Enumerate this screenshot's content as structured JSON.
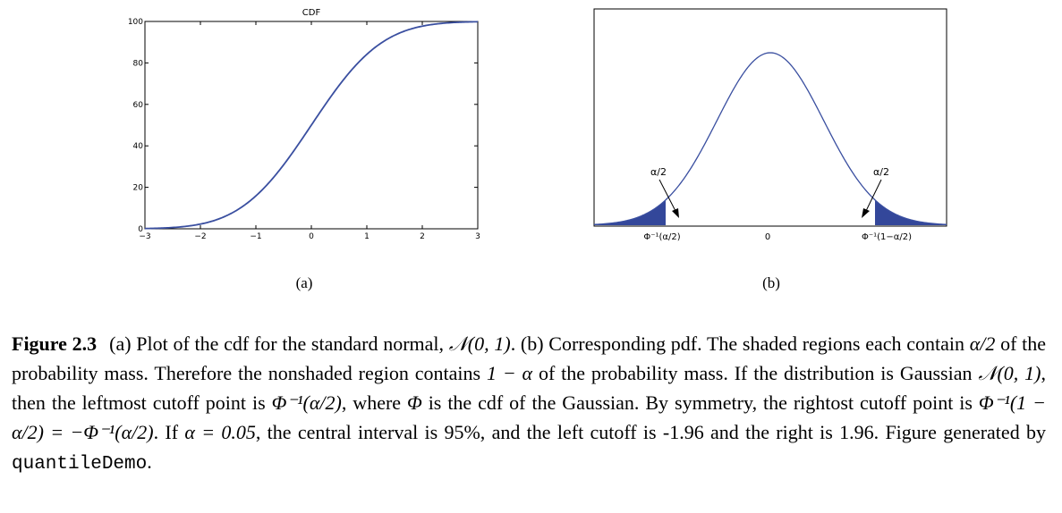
{
  "figure": {
    "panel_a": {
      "title": "CDF",
      "sublabel": "(a)"
    },
    "panel_b": {
      "sublabel": "(b)",
      "annotations": [
        "α/2",
        "α/2"
      ],
      "xtick_labels": [
        "Φ⁻¹(α/2)",
        "0",
        "Φ⁻¹(1−α/2)"
      ]
    }
  },
  "caption": {
    "label": "Figure 2.3",
    "p1": "(a) Plot of the cdf for the standard normal, ",
    "m1": "𝒩(0, 1)",
    "p2": ". (b) Corresponding pdf. The shaded regions each contain ",
    "m2": "α/2",
    "p3": " of the probability mass. Therefore the nonshaded region contains ",
    "m3": "1 − α",
    "p4": " of the probability mass. If the distribution is Gaussian ",
    "m4": "𝒩(0, 1)",
    "p5": ", then the leftmost cutoff point is ",
    "m5": "Φ⁻¹(α/2)",
    "p6": ", where ",
    "m6": "Φ",
    "p7": " is the cdf of the Gaussian. By symmetry, the rightost cutoff point is ",
    "m7": "Φ⁻¹(1 − α/2) = −Φ⁻¹(α/2)",
    "p8": ". If ",
    "m8": "α = 0.05",
    "p9": ", the central interval is 95%, and the left cutoff is -1.96 and the right is 1.96. Figure generated by ",
    "code": "quantileDemo",
    "p10": "."
  },
  "chart_data": [
    {
      "type": "line",
      "title": "CDF",
      "xlabel": "",
      "ylabel": "",
      "xlim": [
        -3,
        3
      ],
      "ylim": [
        0,
        100
      ],
      "xticks": [
        -3,
        -2,
        -1,
        0,
        1,
        2,
        3
      ],
      "yticks": [
        0,
        20,
        40,
        60,
        80,
        100
      ],
      "x": [
        -3,
        -2.5,
        -2,
        -1.5,
        -1,
        -0.5,
        0,
        0.5,
        1,
        1.5,
        2,
        2.5,
        3
      ],
      "y": [
        0.13,
        0.62,
        2.28,
        6.68,
        15.87,
        30.85,
        50,
        69.15,
        84.13,
        93.32,
        97.72,
        99.38,
        99.87
      ],
      "line_color": "#3a4fa0"
    },
    {
      "type": "area",
      "title": "",
      "xlabel": "",
      "ylabel": "",
      "xlim": [
        -3.3,
        3.3
      ],
      "x": [
        -3,
        -2.5,
        -2,
        -1.5,
        -1,
        -0.5,
        0,
        0.5,
        1,
        1.5,
        2,
        2.5,
        3
      ],
      "y": [
        0.0044,
        0.0175,
        0.054,
        0.1295,
        0.242,
        0.352,
        0.3989,
        0.352,
        0.242,
        0.1295,
        0.054,
        0.0175,
        0.0044
      ],
      "shaded_regions": [
        [
          -3.3,
          -1.96
        ],
        [
          1.96,
          3.3
        ]
      ],
      "xticks": [
        -1.96,
        0,
        1.96
      ],
      "xtick_labels": [
        "Φ⁻¹(α/2)",
        "0",
        "Φ⁻¹(1−α/2)"
      ],
      "annotations": [
        "α/2",
        "α/2"
      ],
      "line_color": "#3a4fa0",
      "fill_color": "#33479a"
    }
  ]
}
